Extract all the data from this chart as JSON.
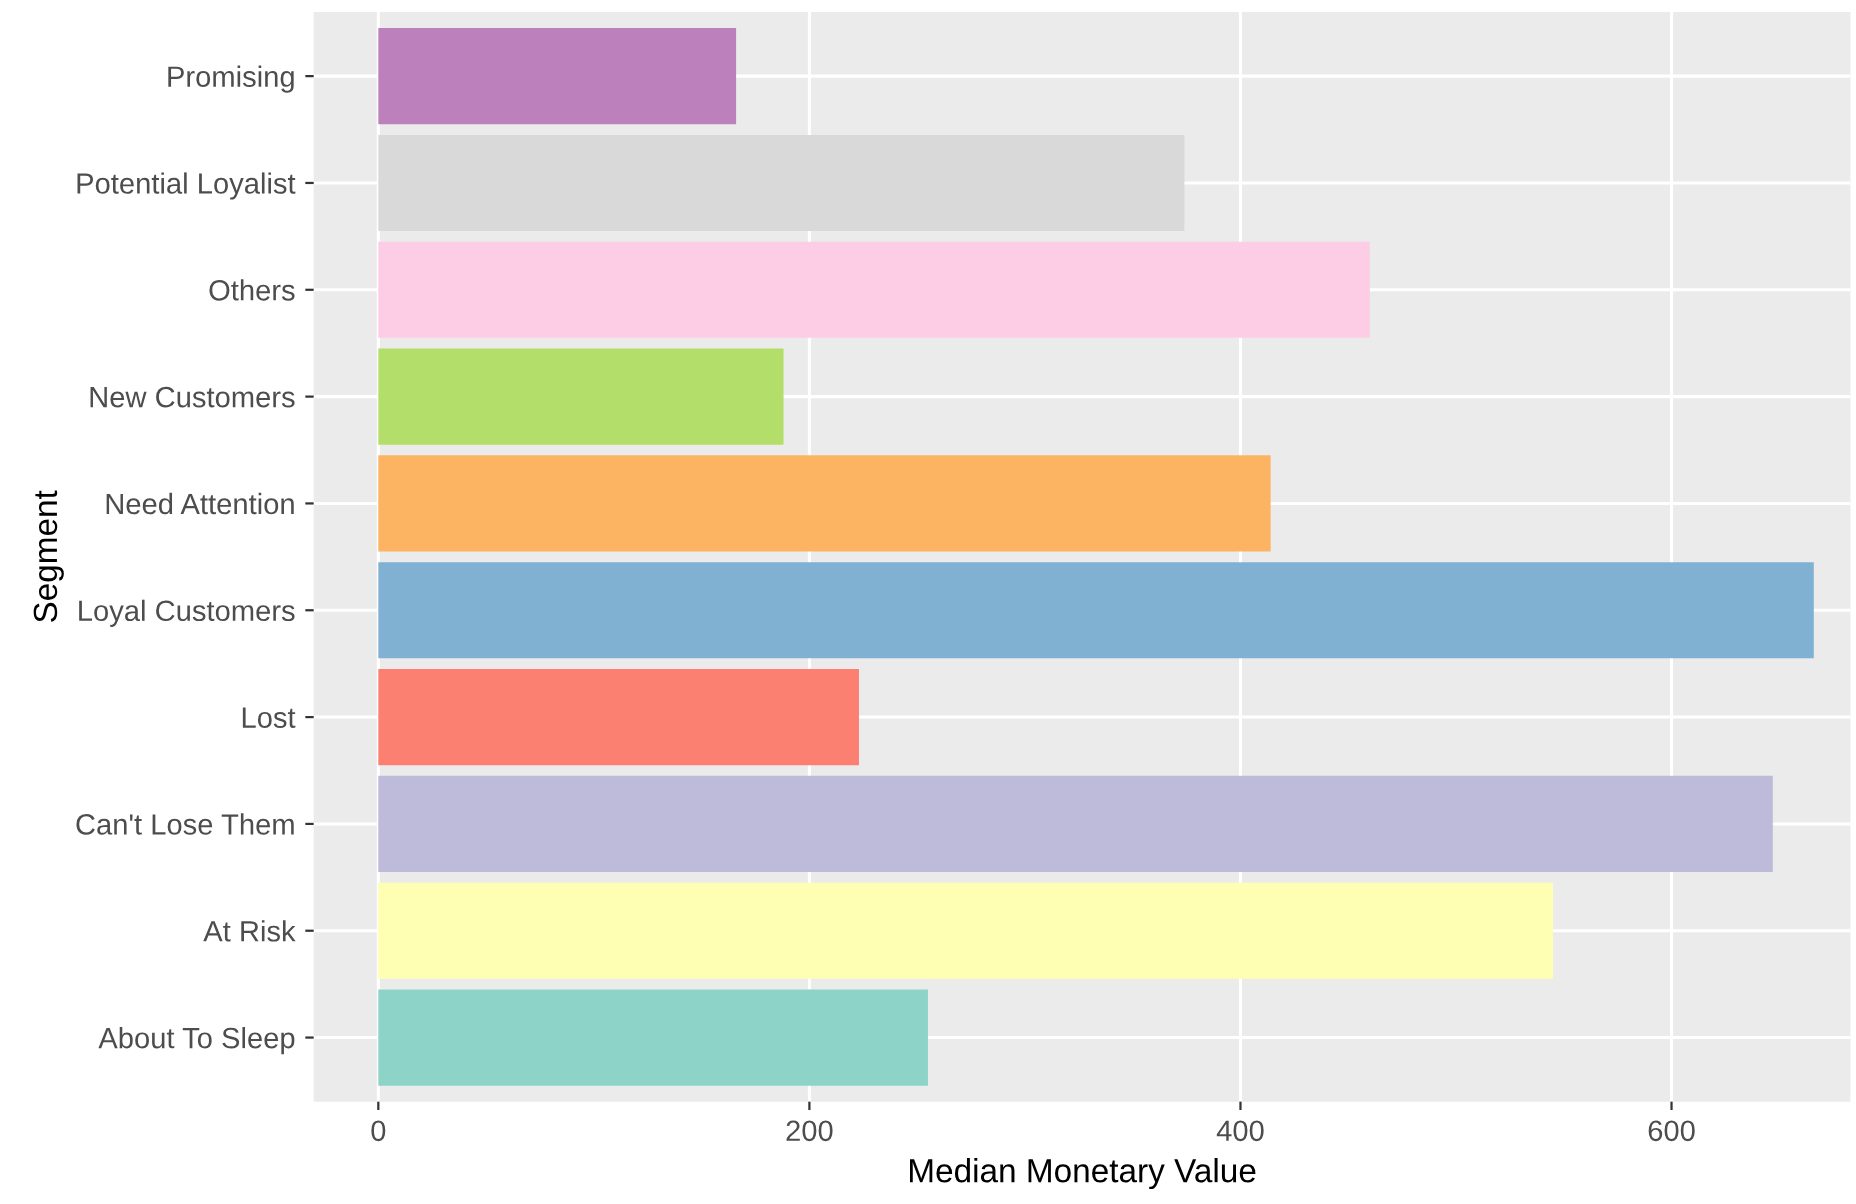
{
  "chart_data": {
    "type": "bar",
    "orientation": "horizontal",
    "xlabel": "Median Monetary Value",
    "ylabel": "Segment",
    "categories": [
      "Promising",
      "Potential Loyalist",
      "Others",
      "New Customers",
      "Need Attention",
      "Loyal Customers",
      "Lost",
      "Can't Lose Them",
      "At Risk",
      "About To Sleep"
    ],
    "values": [
      166,
      374,
      460,
      188,
      414,
      666,
      223,
      647,
      545,
      255
    ],
    "colors": [
      "#bc80bd",
      "#d9d9d9",
      "#fccde5",
      "#b3de69",
      "#fdb462",
      "#80b1d3",
      "#fb8072",
      "#bebada",
      "#ffffb3",
      "#8dd3c7"
    ],
    "xlim": [
      -30,
      683
    ],
    "xticks": [
      0,
      200,
      400,
      600
    ],
    "grid": true
  }
}
